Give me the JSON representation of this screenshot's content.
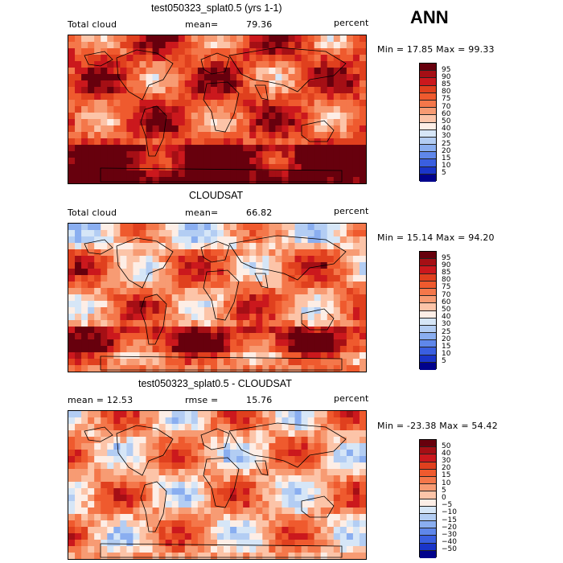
{
  "season": "ANN",
  "panels": [
    {
      "title": "test050323_splat0.5 (yrs 1-1)",
      "left_label": "Total cloud",
      "stat_label": "mean=",
      "stat_value": "79.36",
      "units": "percent",
      "minmax": "Min =  17.85 Max =  99.33",
      "colorbar": {
        "labels": [
          "95",
          "90",
          "85",
          "80",
          "75",
          "70",
          "60",
          "50",
          "40",
          "30",
          "25",
          "20",
          "15",
          "10",
          "5"
        ],
        "colors": [
          "#67000d",
          "#a50f15",
          "#cb181d",
          "#e0401e",
          "#ef5a2e",
          "#f4774a",
          "#f79b73",
          "#fcc4a8",
          "#fdeee6",
          "#d6e6f7",
          "#b3cdf3",
          "#8aaef0",
          "#5f87ea",
          "#3a5fe0",
          "#1a35c9",
          "#00028c"
        ]
      },
      "field_mean": 79.36
    },
    {
      "title": "CLOUDSAT",
      "left_label": "Total cloud",
      "stat_label": "mean=",
      "stat_value": "66.82",
      "units": "percent",
      "minmax": "Min =  15.14 Max =  94.20",
      "colorbar": {
        "labels": [
          "95",
          "90",
          "85",
          "80",
          "75",
          "70",
          "60",
          "50",
          "40",
          "30",
          "25",
          "20",
          "15",
          "10",
          "5"
        ],
        "colors": [
          "#67000d",
          "#a50f15",
          "#cb181d",
          "#e0401e",
          "#ef5a2e",
          "#f4774a",
          "#f79b73",
          "#fcc4a8",
          "#fdeee6",
          "#d6e6f7",
          "#b3cdf3",
          "#8aaef0",
          "#5f87ea",
          "#3a5fe0",
          "#1a35c9",
          "#00028c"
        ]
      },
      "field_mean": 66.82
    },
    {
      "title": "test050323_splat0.5 - CLOUDSAT",
      "left_label": "mean =   12.53",
      "stat_label": "rmse =",
      "stat_value": "15.76",
      "units": "percent",
      "minmax": "Min = -23.38 Max =  54.42",
      "colorbar": {
        "labels": [
          "50",
          "40",
          "30",
          "20",
          "15",
          "10",
          "5",
          "0",
          "−5",
          "−10",
          "−15",
          "−20",
          "−30",
          "−40",
          "−50"
        ],
        "colors": [
          "#67000d",
          "#a50f15",
          "#cb181d",
          "#e0401e",
          "#ef5a2e",
          "#f4774a",
          "#f79b73",
          "#fcc4a8",
          "#fdeee6",
          "#d6e6f7",
          "#b3cdf3",
          "#8aaef0",
          "#5f87ea",
          "#3a5fe0",
          "#1a35c9",
          "#00028c"
        ]
      },
      "field_mean": 12.53
    }
  ]
}
